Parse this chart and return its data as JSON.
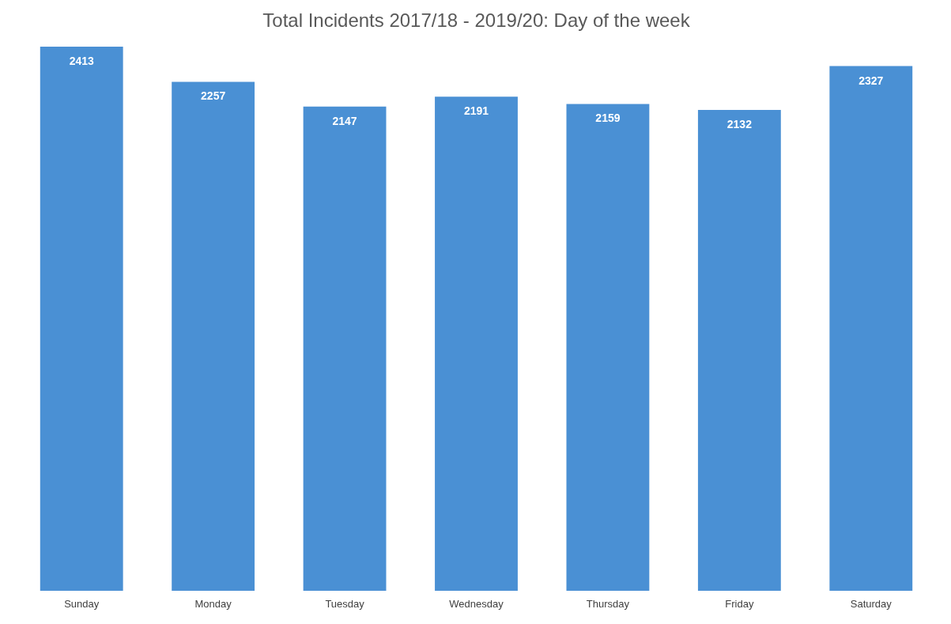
{
  "chart_data": {
    "type": "bar",
    "title": "Total Incidents 2017/18 - 2019/20: Day of the week",
    "categories": [
      "Sunday",
      "Monday",
      "Tuesday",
      "Wednesday",
      "Thursday",
      "Friday",
      "Saturday"
    ],
    "values": [
      2413,
      2257,
      2147,
      2191,
      2159,
      2132,
      2327
    ],
    "color": "#4a90d4",
    "data_labels": true,
    "grid": false
  }
}
